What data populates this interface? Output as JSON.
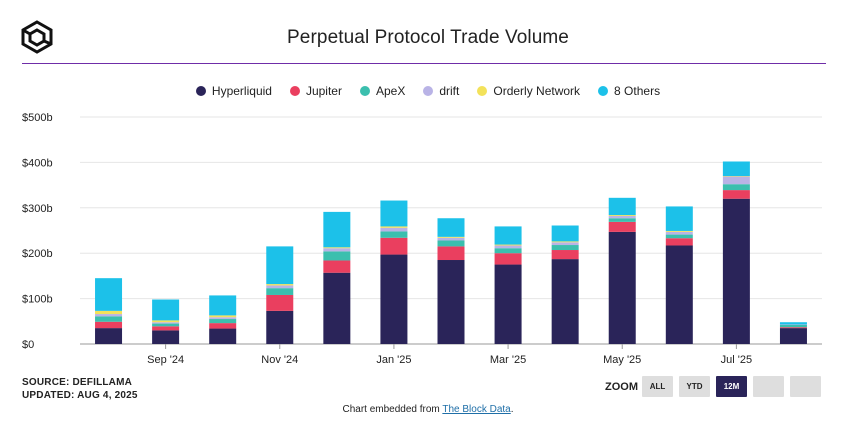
{
  "title": "Perpetual Protocol Trade Volume",
  "legend": [
    {
      "name": "Hyperliquid",
      "color": "#2a2459"
    },
    {
      "name": "Jupiter",
      "color": "#ea3f5f"
    },
    {
      "name": "ApeX",
      "color": "#3bbfae"
    },
    {
      "name": "drift",
      "color": "#b9b3e6"
    },
    {
      "name": "Orderly Network",
      "color": "#f3e25a"
    },
    {
      "name": "8 Others",
      "color": "#1cc1e9"
    }
  ],
  "source": {
    "line1": "SOURCE: DEFILLAMA",
    "line2": "UPDATED: AUG 4, 2025"
  },
  "zoom": {
    "label": "ZOOM",
    "buttons": [
      {
        "label": "ALL",
        "active": false
      },
      {
        "label": "YTD",
        "active": false
      },
      {
        "label": "12M",
        "active": true
      },
      {
        "label": "",
        "active": false
      },
      {
        "label": "",
        "active": false
      }
    ]
  },
  "footer": {
    "prefix": "Chart embedded from ",
    "link": "The Block Data",
    "suffix": "."
  },
  "chart_data": {
    "type": "bar",
    "stacked": true,
    "title": "Perpetual Protocol Trade Volume",
    "xlabel": "",
    "ylabel": "",
    "ylim": [
      0,
      500
    ],
    "y_unit": "billions USD",
    "y_ticks": [
      0,
      100,
      200,
      300,
      400,
      500
    ],
    "y_tick_labels": [
      "$0",
      "$100b",
      "$200b",
      "$300b",
      "$400b",
      "$500b"
    ],
    "categories": [
      "Aug '24",
      "Sep '24",
      "Oct '24",
      "Nov '24",
      "Dec '24",
      "Jan '25",
      "Feb '25",
      "Mar '25",
      "Apr '25",
      "May '25",
      "Jun '25",
      "Jul '25",
      "Aug '25"
    ],
    "x_tick_labels": [
      {
        "category": "Sep '24",
        "label": "Sep '24"
      },
      {
        "category": "Nov '24",
        "label": "Nov '24"
      },
      {
        "category": "Jan '25",
        "label": "Jan '25"
      },
      {
        "category": "Mar '25",
        "label": "Mar '25"
      },
      {
        "category": "May '25",
        "label": "May '25"
      },
      {
        "category": "Jul '25",
        "label": "Jul '25"
      }
    ],
    "series": [
      {
        "name": "Hyperliquid",
        "color": "#2a2459",
        "values": [
          35,
          30,
          34,
          73,
          157,
          197,
          185,
          175,
          187,
          247,
          217,
          320,
          35
        ]
      },
      {
        "name": "Jupiter",
        "color": "#ea3f5f",
        "values": [
          14,
          9,
          12,
          35,
          27,
          37,
          30,
          25,
          20,
          22,
          16,
          19,
          2
        ]
      },
      {
        "name": "ApeX",
        "color": "#3bbfae",
        "values": [
          12,
          6,
          9,
          15,
          20,
          14,
          13,
          11,
          11,
          8,
          8,
          13,
          5
        ]
      },
      {
        "name": "drift",
        "color": "#b9b3e6",
        "values": [
          5,
          3,
          4,
          6,
          7,
          8,
          6,
          6,
          6,
          5,
          6,
          17,
          1
        ]
      },
      {
        "name": "Orderly Network",
        "color": "#f3e25a",
        "values": [
          7,
          4,
          4,
          3,
          2,
          3,
          2,
          2,
          2,
          2,
          2,
          1,
          0
        ]
      },
      {
        "name": "8 Others",
        "color": "#1cc1e9",
        "values": [
          72,
          46,
          44,
          83,
          78,
          57,
          41,
          40,
          35,
          38,
          54,
          32,
          5
        ]
      }
    ],
    "grid": true,
    "legend_position": "top-center"
  }
}
